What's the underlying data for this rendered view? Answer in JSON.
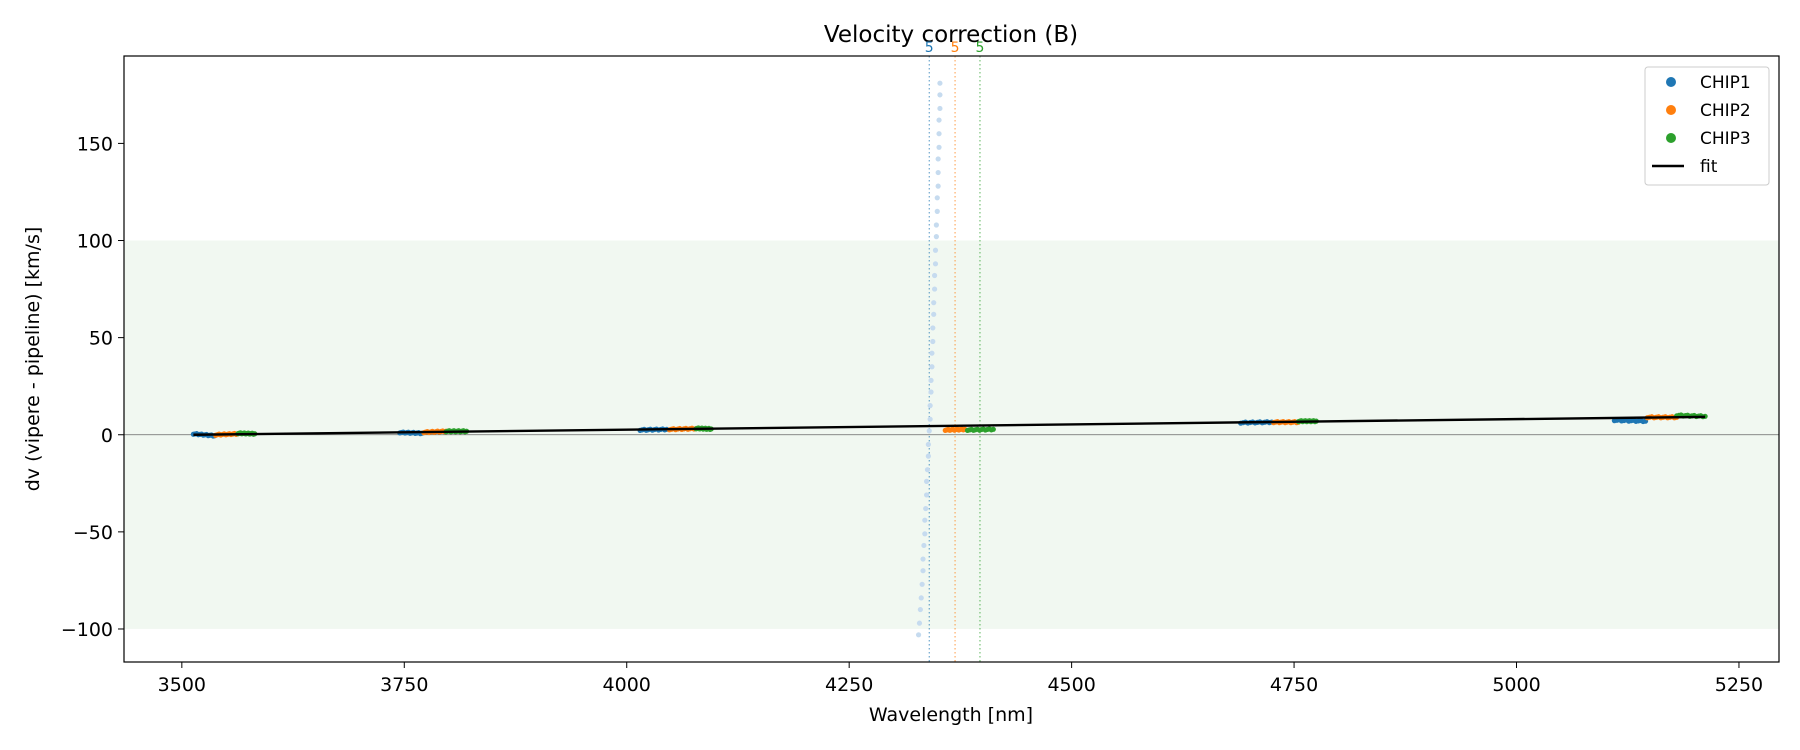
{
  "chart_data": {
    "type": "scatter",
    "title": "Velocity correction (B)",
    "xlabel": "Wavelength [nm]",
    "ylabel": "dv (vipere - pipeline) [km/s]",
    "xlim": [
      3435,
      5295
    ],
    "ylim": [
      -117,
      195
    ],
    "xticks": [
      3500,
      3750,
      4000,
      4250,
      4500,
      4750,
      5000,
      5250
    ],
    "yticks": [
      -100,
      -50,
      0,
      50,
      100,
      150
    ],
    "shaded_band": {
      "y_from": -100,
      "y_to": 100,
      "color": "#e8f4e8"
    },
    "zero_line": 0,
    "legend_position": "top-right",
    "colors": {
      "CHIP1": "#1f77b4",
      "CHIP2": "#ff7f0e",
      "CHIP3": "#2ca02c",
      "fit": "#000000"
    },
    "series": [
      {
        "name": "CHIP1",
        "clusters": [
          {
            "x_range": [
              3513,
              3537
            ],
            "y": [
              0.5,
              -0.5
            ]
          },
          {
            "x_range": [
              3745,
              3770
            ],
            "y": [
              1.2,
              0.8
            ]
          },
          {
            "x_range": [
              4015,
              4045
            ],
            "y": [
              2.5,
              2.8
            ]
          },
          {
            "x_range": [
              4690,
              4725
            ],
            "y": [
              6.2,
              6.5
            ]
          },
          {
            "x_range": [
              5110,
              5145
            ],
            "y": [
              7.5,
              7.0
            ]
          }
        ]
      },
      {
        "name": "CHIP2",
        "clusters": [
          {
            "x_range": [
              3538,
              3563
            ],
            "y": [
              0.0,
              0.5
            ]
          },
          {
            "x_range": [
              3772,
              3797
            ],
            "y": [
              1.3,
              1.8
            ]
          },
          {
            "x_range": [
              4048,
              4078
            ],
            "y": [
              2.8,
              3.2
            ]
          },
          {
            "x_range": [
              4358,
              4380
            ],
            "y": [
              2.5,
              2.8
            ]
          },
          {
            "x_range": [
              4727,
              4755
            ],
            "y": [
              6.5,
              6.5
            ]
          },
          {
            "x_range": [
              5147,
              5180
            ],
            "y": [
              9.0,
              9.0
            ]
          }
        ]
      },
      {
        "name": "CHIP3",
        "clusters": [
          {
            "x_range": [
              3563,
              3582
            ],
            "y": [
              0.8,
              0.5
            ]
          },
          {
            "x_range": [
              3797,
              3820
            ],
            "y": [
              1.8,
              1.8
            ]
          },
          {
            "x_range": [
              4078,
              4095
            ],
            "y": [
              3.3,
              3.0
            ]
          },
          {
            "x_range": [
              4383,
              4412
            ],
            "y": [
              2.5,
              2.8
            ]
          },
          {
            "x_range": [
              4755,
              4775
            ],
            "y": [
              7.0,
              7.0
            ]
          },
          {
            "x_range": [
              5180,
              5212
            ],
            "y": [
              10.0,
              9.5
            ]
          }
        ]
      },
      {
        "name": "CHIP1 (order 5, faded)",
        "points": [
          {
            "x": 4328,
            "y": -103
          },
          {
            "x": 4329,
            "y": -97
          },
          {
            "x": 4330,
            "y": -90
          },
          {
            "x": 4331,
            "y": -84
          },
          {
            "x": 4332,
            "y": -77
          },
          {
            "x": 4333,
            "y": -70
          },
          {
            "x": 4333,
            "y": -64
          },
          {
            "x": 4334,
            "y": -57
          },
          {
            "x": 4335,
            "y": -51
          },
          {
            "x": 4335,
            "y": -44
          },
          {
            "x": 4336,
            "y": -38
          },
          {
            "x": 4337,
            "y": -31
          },
          {
            "x": 4337,
            "y": -24
          },
          {
            "x": 4338,
            "y": -18
          },
          {
            "x": 4339,
            "y": -11
          },
          {
            "x": 4339,
            "y": -5
          },
          {
            "x": 4340,
            "y": 2
          },
          {
            "x": 4341,
            "y": 8
          },
          {
            "x": 4341,
            "y": 15
          },
          {
            "x": 4342,
            "y": 22
          },
          {
            "x": 4342,
            "y": 28
          },
          {
            "x": 4343,
            "y": 35
          },
          {
            "x": 4343,
            "y": 42
          },
          {
            "x": 4344,
            "y": 48
          },
          {
            "x": 4344,
            "y": 55
          },
          {
            "x": 4345,
            "y": 62
          },
          {
            "x": 4345,
            "y": 68
          },
          {
            "x": 4346,
            "y": 75
          },
          {
            "x": 4346,
            "y": 82
          },
          {
            "x": 4347,
            "y": 88
          },
          {
            "x": 4347,
            "y": 95
          },
          {
            "x": 4348,
            "y": 102
          },
          {
            "x": 4348,
            "y": 108
          },
          {
            "x": 4349,
            "y": 115
          },
          {
            "x": 4349,
            "y": 122
          },
          {
            "x": 4350,
            "y": 128
          },
          {
            "x": 4350,
            "y": 135
          },
          {
            "x": 4350,
            "y": 142
          },
          {
            "x": 4351,
            "y": 148
          },
          {
            "x": 4351,
            "y": 155
          },
          {
            "x": 4351,
            "y": 162
          },
          {
            "x": 4352,
            "y": 168
          },
          {
            "x": 4352,
            "y": 175
          },
          {
            "x": 4352,
            "y": 181
          }
        ]
      }
    ],
    "fit": {
      "name": "fit",
      "x": [
        3513,
        5212
      ],
      "y": [
        0.0,
        9.2
      ]
    },
    "order_markers": [
      {
        "x": 4340,
        "label": "5",
        "color": "#1f77b4"
      },
      {
        "x": 4369,
        "label": "5",
        "color": "#ff7f0e"
      },
      {
        "x": 4397,
        "label": "5",
        "color": "#2ca02c"
      }
    ],
    "legend": [
      "CHIP1",
      "CHIP2",
      "CHIP3",
      "fit"
    ]
  }
}
